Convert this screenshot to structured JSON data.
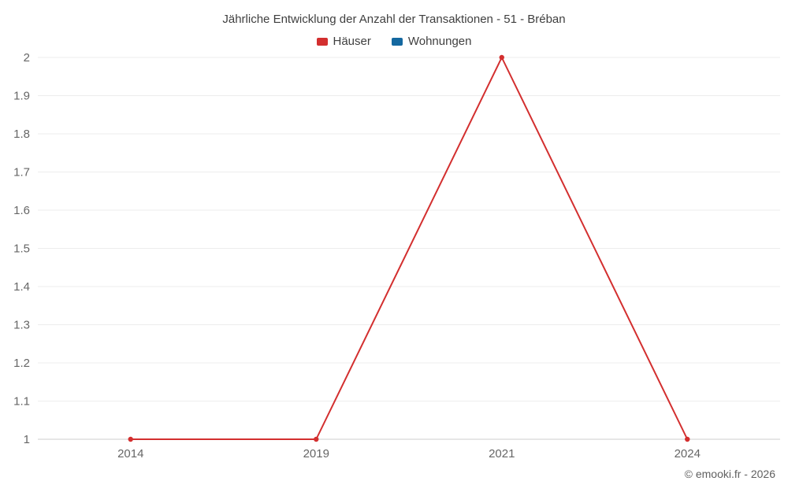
{
  "chart": {
    "title": "Jährliche Entwicklung der Anzahl der Transaktionen - 51 - Bréban",
    "watermark": "© emooki.fr - 2026"
  },
  "chart_data": {
    "type": "line",
    "title": "Jährliche Entwicklung der Anzahl der Transaktionen - 51 - Bréban",
    "categories": [
      "2014",
      "2019",
      "2021",
      "2024"
    ],
    "series": [
      {
        "name": "Häuser",
        "color": "#d32f2f",
        "values": [
          1,
          1,
          2,
          1
        ]
      },
      {
        "name": "Wohnungen",
        "color": "#1468a0",
        "values": []
      }
    ],
    "xlabel": "",
    "ylabel": "",
    "ylim": [
      1,
      2
    ],
    "ytick_step": 0.1,
    "ytick_labels": [
      "1",
      "1.1",
      "1.2",
      "1.3",
      "1.4",
      "1.5",
      "1.6",
      "1.7",
      "1.8",
      "1.9",
      "2"
    ],
    "grid": true,
    "legend_position": "top"
  },
  "colors": {
    "grid": "#ededed",
    "axis": "#cccccc",
    "tick_label": "#666666",
    "title": "#3f3f3f"
  }
}
